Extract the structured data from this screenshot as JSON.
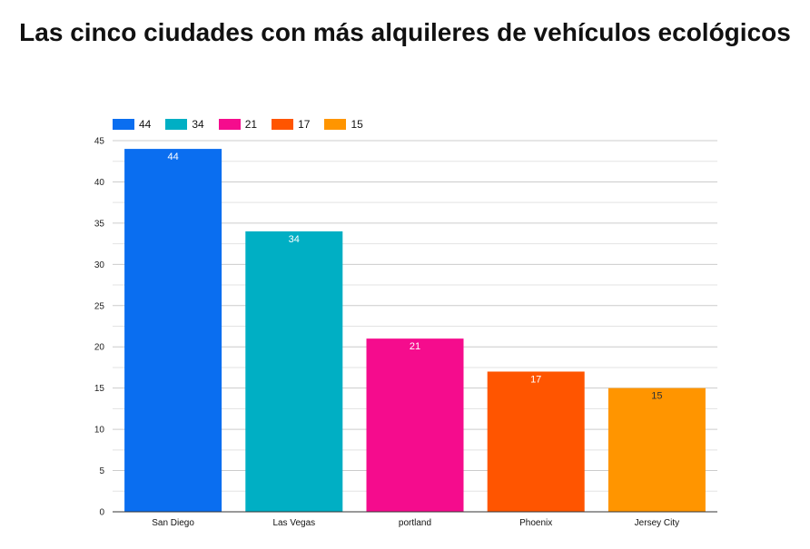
{
  "chart_data": {
    "type": "bar",
    "title": "Las cinco ciudades con más alquileres de vehículos ecológicos",
    "xlabel": "",
    "ylabel": "",
    "categories": [
      "San Diego",
      "Las Vegas",
      "portland",
      "Phoenix",
      "Jersey City"
    ],
    "values": [
      44,
      34,
      21,
      17,
      15
    ],
    "colors": [
      "#0a6ef0",
      "#00afc4",
      "#f50c8d",
      "#ff5500",
      "#ff9500"
    ],
    "label_colors": [
      "#ffffff",
      "#ffffff",
      "#ffffff",
      "#ffffff",
      "#333333"
    ],
    "legend": {
      "position": "top-left",
      "entries": [
        "44",
        "34",
        "21",
        "17",
        "15"
      ]
    },
    "ylim": [
      0,
      45
    ],
    "yticks": [
      0,
      5,
      10,
      15,
      20,
      25,
      30,
      35,
      40,
      45
    ],
    "grid": true
  }
}
